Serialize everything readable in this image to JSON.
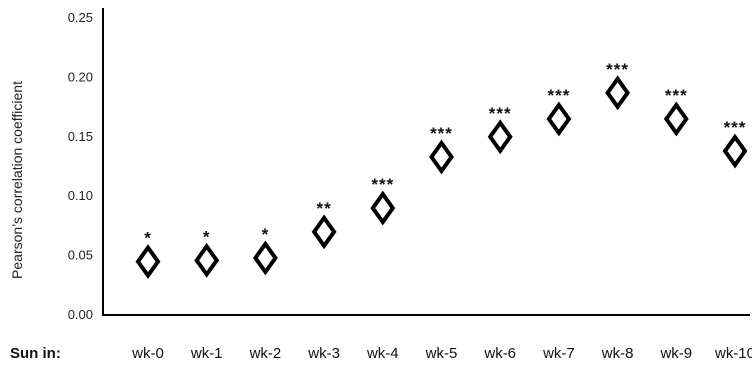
{
  "chart_data": {
    "type": "scatter",
    "ylabel": "Pearson’s correlation coefficient",
    "x_row_label": "Sun in:",
    "categories": [
      "wk-0",
      "wk-1",
      "wk-2",
      "wk-3",
      "wk-4",
      "wk-5",
      "wk-6",
      "wk-7",
      "wk-8",
      "wk-9",
      "wk-10"
    ],
    "values": [
      0.045,
      0.046,
      0.048,
      0.07,
      0.09,
      0.133,
      0.15,
      0.165,
      0.187,
      0.165,
      0.138
    ],
    "significance": [
      "*",
      "*",
      "*",
      "**",
      "***",
      "***",
      "***",
      "***",
      "***",
      "***",
      "***"
    ],
    "ylim": [
      0,
      0.25
    ],
    "yticks": [
      "0.00",
      "0.05",
      "0.10",
      "0.15",
      "0.20",
      "0.25"
    ],
    "marker": "diamond",
    "grid": false,
    "colors": {
      "marker_stroke": "#000000",
      "marker_fill": "#ffffff",
      "axis": "#000000"
    }
  }
}
